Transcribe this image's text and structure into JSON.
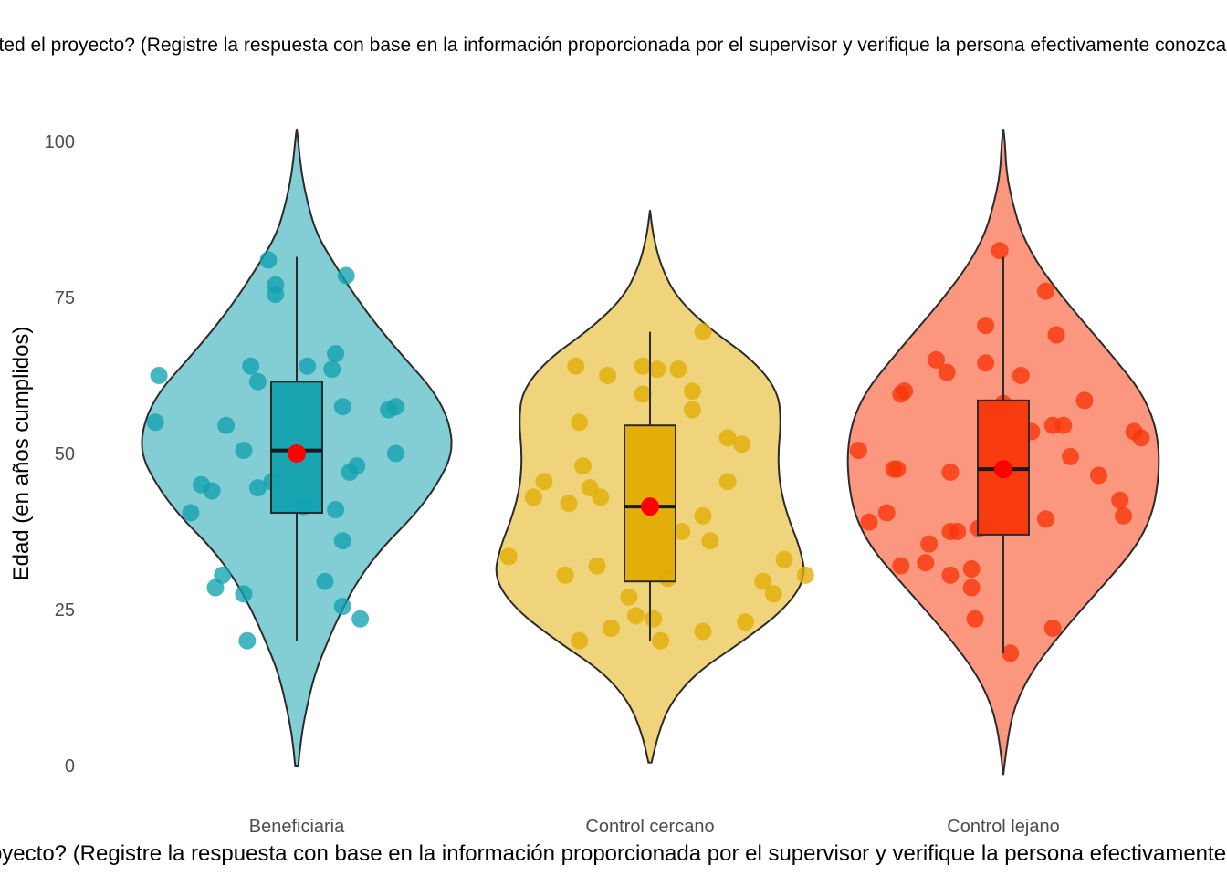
{
  "chart_data": {
    "type": "violin",
    "title": "¿Conoce usted el proyecto? (Registre la respuesta con base en la información proporcionada por el supervisor y verifique la persona efectivamente conozca el proyecto)",
    "xlabel": "¿Conoce usted el proyecto? (Registre la respuesta con base en la información proporcionada por el supervisor y verifique la persona efectivamente conozca el proyecto)",
    "ylabel": "Edad (en años cumplidos)",
    "ylim": [
      0,
      100
    ],
    "yticks": [
      0,
      25,
      50,
      75,
      100
    ],
    "grid": false,
    "legend": "none",
    "categories": [
      "Beneficiaria",
      "Control cercano",
      "Control lejano"
    ],
    "colors": {
      "Beneficiaria": "#12A1AE",
      "Control cercano": "#E1AC04",
      "Control lejano": "#F83609",
      "mean_point": "#FF0000"
    },
    "series": [
      {
        "category": "Beneficiaria",
        "violin_range": [
          0,
          102
        ],
        "density_profile": [
          [
            0,
            0.01
          ],
          [
            5,
            0.03
          ],
          [
            10,
            0.07
          ],
          [
            15,
            0.12
          ],
          [
            20,
            0.2
          ],
          [
            25,
            0.29
          ],
          [
            30,
            0.4
          ],
          [
            35,
            0.55
          ],
          [
            40,
            0.75
          ],
          [
            45,
            0.9
          ],
          [
            50,
            1.0
          ],
          [
            55,
            0.98
          ],
          [
            60,
            0.88
          ],
          [
            65,
            0.7
          ],
          [
            70,
            0.53
          ],
          [
            75,
            0.38
          ],
          [
            80,
            0.25
          ],
          [
            85,
            0.13
          ],
          [
            90,
            0.07
          ],
          [
            95,
            0.03
          ],
          [
            100,
            0.01
          ],
          [
            102,
            0
          ]
        ],
        "box": {
          "min": 20,
          "q1": 40.5,
          "median": 50.5,
          "q3": 61.5,
          "max": 81.5
        },
        "mean": 50,
        "points": [
          [
            -0.39,
            62.5
          ],
          [
            -0.4,
            55
          ],
          [
            -0.3,
            40.5
          ],
          [
            -0.27,
            45
          ],
          [
            -0.24,
            44
          ],
          [
            -0.2,
            54.5
          ],
          [
            -0.23,
            28.5
          ],
          [
            -0.21,
            30.5
          ],
          [
            -0.15,
            27.5
          ],
          [
            -0.14,
            20
          ],
          [
            -0.15,
            50.5
          ],
          [
            -0.13,
            64
          ],
          [
            -0.11,
            61.5
          ],
          [
            -0.11,
            44.5
          ],
          [
            -0.08,
            81
          ],
          [
            -0.06,
            77
          ],
          [
            -0.06,
            75.5
          ],
          [
            -0.07,
            45.5
          ],
          [
            0.02,
            41.5
          ],
          [
            0.03,
            64
          ],
          [
            0.08,
            29.5
          ],
          [
            0.1,
            63.5
          ],
          [
            0.11,
            66
          ],
          [
            0.11,
            41
          ],
          [
            0.13,
            57.5
          ],
          [
            0.14,
            78.5
          ],
          [
            0.13,
            36
          ],
          [
            0.15,
            47
          ],
          [
            0.17,
            48
          ],
          [
            0.13,
            25.5
          ],
          [
            0.18,
            23.5
          ],
          [
            0.26,
            57
          ],
          [
            0.28,
            57.5
          ],
          [
            0.28,
            50
          ]
        ]
      },
      {
        "category": "Control cercano",
        "violin_range": [
          0.5,
          89
        ],
        "density_profile": [
          [
            0.5,
            0.01
          ],
          [
            5,
            0.05
          ],
          [
            10,
            0.13
          ],
          [
            15,
            0.3
          ],
          [
            20,
            0.6
          ],
          [
            25,
            0.86
          ],
          [
            30,
            1.0
          ],
          [
            35,
            0.96
          ],
          [
            40,
            0.88
          ],
          [
            45,
            0.83
          ],
          [
            50,
            0.82
          ],
          [
            55,
            0.84
          ],
          [
            60,
            0.82
          ],
          [
            65,
            0.66
          ],
          [
            70,
            0.38
          ],
          [
            75,
            0.17
          ],
          [
            80,
            0.07
          ],
          [
            85,
            0.02
          ],
          [
            89,
            0
          ]
        ],
        "box": {
          "min": 20,
          "q1": 29.5,
          "median": 41.5,
          "q3": 54.5,
          "max": 69.5
        },
        "mean": 41.5,
        "points": [
          [
            -0.4,
            33.5
          ],
          [
            -0.33,
            43
          ],
          [
            -0.3,
            45.5
          ],
          [
            -0.21,
            64
          ],
          [
            -0.23,
            42
          ],
          [
            -0.2,
            55
          ],
          [
            -0.19,
            48
          ],
          [
            -0.17,
            44.5
          ],
          [
            -0.14,
            43
          ],
          [
            -0.12,
            62.5
          ],
          [
            -0.15,
            32
          ],
          [
            -0.24,
            30.5
          ],
          [
            -0.2,
            20
          ],
          [
            -0.11,
            22
          ],
          [
            -0.06,
            27
          ],
          [
            -0.04,
            24
          ],
          [
            -0.02,
            64
          ],
          [
            -0.02,
            59.5
          ],
          [
            0.02,
            63.5
          ],
          [
            0.01,
            23.5
          ],
          [
            0.03,
            20
          ],
          [
            0.05,
            30
          ],
          [
            0.08,
            63.5
          ],
          [
            0.09,
            37.5
          ],
          [
            0.12,
            57
          ],
          [
            0.12,
            60
          ],
          [
            0.15,
            69.5
          ],
          [
            0.15,
            40
          ],
          [
            0.17,
            36
          ],
          [
            0.15,
            21.5
          ],
          [
            0.22,
            52.5
          ],
          [
            0.26,
            51.5
          ],
          [
            0.22,
            45.5
          ],
          [
            0.27,
            23
          ],
          [
            0.32,
            29.5
          ],
          [
            0.35,
            27.5
          ],
          [
            0.38,
            33
          ],
          [
            0.44,
            30.5
          ]
        ]
      },
      {
        "category": "Control lejano",
        "violin_range": [
          -1.5,
          102
        ],
        "density_profile": [
          [
            -1.5,
            0
          ],
          [
            5,
            0.03
          ],
          [
            10,
            0.08
          ],
          [
            15,
            0.18
          ],
          [
            20,
            0.33
          ],
          [
            25,
            0.5
          ],
          [
            30,
            0.68
          ],
          [
            35,
            0.85
          ],
          [
            40,
            0.95
          ],
          [
            45,
            0.99
          ],
          [
            50,
            1.0
          ],
          [
            55,
            0.97
          ],
          [
            60,
            0.88
          ],
          [
            65,
            0.72
          ],
          [
            70,
            0.55
          ],
          [
            75,
            0.38
          ],
          [
            80,
            0.23
          ],
          [
            85,
            0.12
          ],
          [
            90,
            0.06
          ],
          [
            95,
            0.02
          ],
          [
            100,
            0.01
          ],
          [
            102,
            0
          ]
        ],
        "box": {
          "min": 18,
          "q1": 37,
          "median": 47.5,
          "q3": 58.5,
          "max": 81.5
        },
        "mean": 47.5,
        "points": [
          [
            -0.41,
            50.5
          ],
          [
            -0.38,
            39
          ],
          [
            -0.33,
            40.5
          ],
          [
            -0.31,
            47.5
          ],
          [
            -0.3,
            47.5
          ],
          [
            -0.29,
            59.5
          ],
          [
            -0.28,
            60
          ],
          [
            -0.29,
            32
          ],
          [
            -0.22,
            32.5
          ],
          [
            -0.21,
            35.5
          ],
          [
            -0.19,
            65
          ],
          [
            -0.16,
            63
          ],
          [
            -0.15,
            47
          ],
          [
            -0.15,
            37.5
          ],
          [
            -0.13,
            37.5
          ],
          [
            -0.15,
            30.5
          ],
          [
            -0.09,
            31.5
          ],
          [
            -0.08,
            23.5
          ],
          [
            -0.09,
            28.5
          ],
          [
            -0.07,
            38
          ],
          [
            -0.05,
            70.5
          ],
          [
            -0.05,
            64.5
          ],
          [
            -0.01,
            82.5
          ],
          [
            0.0,
            58
          ],
          [
            0.02,
            18
          ],
          [
            0.05,
            62.5
          ],
          [
            0.08,
            53.5
          ],
          [
            0.12,
            39.5
          ],
          [
            0.12,
            76
          ],
          [
            0.14,
            54.5
          ],
          [
            0.14,
            22
          ],
          [
            0.15,
            69
          ],
          [
            0.17,
            54.5
          ],
          [
            0.19,
            49.5
          ],
          [
            0.23,
            58.5
          ],
          [
            0.27,
            46.5
          ],
          [
            0.33,
            42.5
          ],
          [
            0.34,
            40
          ],
          [
            0.37,
            53.5
          ],
          [
            0.39,
            52.5
          ]
        ]
      }
    ]
  }
}
